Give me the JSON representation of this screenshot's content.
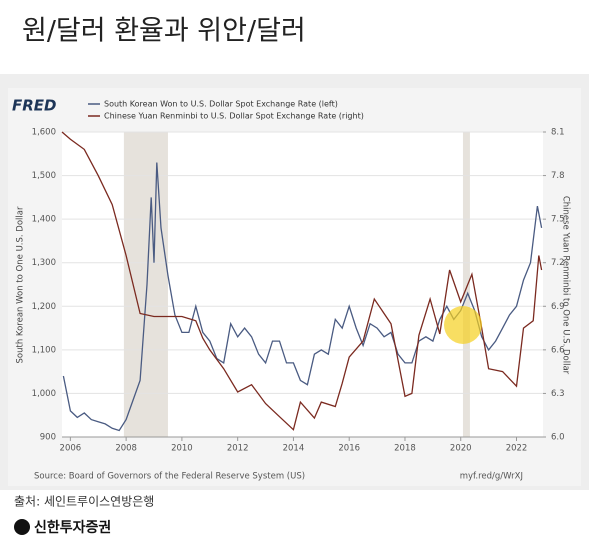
{
  "slide": {
    "title": "원/달러 환율과 위안/달러",
    "source": "출처: 세인트루이스연방은행",
    "brand": "신한투자증권"
  },
  "chart_data": {
    "type": "line",
    "logo": "FRED",
    "source": "Source: Board of Governors of the Federal Reserve System (US)",
    "url": "myf.red/g/WrXJ",
    "ylabel": "South Korean Won to One U.S. Dollar",
    "y2label": "Chinese Yuan Renminbi to One U.S. Dollar",
    "xlim": [
      2005.7,
      2022.95
    ],
    "xticks": [
      2006,
      2008,
      2010,
      2012,
      2014,
      2016,
      2018,
      2020,
      2022
    ],
    "ylim": [
      900,
      1600
    ],
    "yticks": [
      900,
      {
        "value": 1000,
        "label": "1,000"
      },
      {
        "value": 1100,
        "label": "1,100"
      },
      {
        "value": 1200,
        "label": "1,200"
      },
      {
        "value": 1300,
        "label": "1,300"
      },
      {
        "value": 1400,
        "label": "1,400"
      },
      {
        "value": 1500,
        "label": "1,500"
      },
      {
        "value": 1600,
        "label": "1,600"
      }
    ],
    "y2lim": [
      6.0,
      8.1
    ],
    "y2ticks": [
      {
        "value": 6,
        "label": "6.0"
      },
      6.3,
      6.6,
      6.9,
      7.2,
      7.5,
      7.8,
      8.1
    ],
    "grid": true,
    "shaded_ranges": [
      [
        2007.92,
        2009.5
      ],
      [
        2020.08,
        2020.33
      ]
    ],
    "series": [
      {
        "name": "South Korean Won to U.S. Dollar Spot Exchange Rate (left)",
        "color": "#4a5b82",
        "x": [
          2005.75,
          2006.0,
          2006.25,
          2006.5,
          2006.75,
          2007.0,
          2007.25,
          2007.5,
          2007.75,
          2008.0,
          2008.25,
          2008.5,
          2008.75,
          2008.9,
          2009.0,
          2009.1,
          2009.25,
          2009.5,
          2009.75,
          2010.0,
          2010.25,
          2010.5,
          2010.75,
          2011.0,
          2011.25,
          2011.5,
          2011.75,
          2012.0,
          2012.25,
          2012.5,
          2012.75,
          2013.0,
          2013.25,
          2013.5,
          2013.75,
          2014.0,
          2014.25,
          2014.5,
          2014.75,
          2015.0,
          2015.25,
          2015.5,
          2015.75,
          2016.0,
          2016.25,
          2016.5,
          2016.75,
          2017.0,
          2017.25,
          2017.5,
          2017.75,
          2018.0,
          2018.25,
          2018.5,
          2018.75,
          2019.0,
          2019.25,
          2019.5,
          2019.75,
          2020.0,
          2020.25,
          2020.5,
          2020.75,
          2021.0,
          2021.25,
          2021.5,
          2021.75,
          2022.0,
          2022.25,
          2022.5,
          2022.75,
          2022.9
        ],
        "values": [
          1040,
          960,
          945,
          955,
          940,
          935,
          930,
          920,
          915,
          940,
          985,
          1030,
          1250,
          1450,
          1300,
          1530,
          1380,
          1270,
          1180,
          1140,
          1140,
          1200,
          1140,
          1120,
          1080,
          1070,
          1160,
          1130,
          1150,
          1130,
          1090,
          1070,
          1120,
          1120,
          1070,
          1070,
          1030,
          1020,
          1090,
          1100,
          1090,
          1170,
          1150,
          1200,
          1150,
          1110,
          1160,
          1150,
          1130,
          1140,
          1090,
          1070,
          1070,
          1120,
          1130,
          1120,
          1170,
          1200,
          1170,
          1190,
          1230,
          1190,
          1130,
          1100,
          1120,
          1150,
          1180,
          1200,
          1260,
          1300,
          1430,
          1380
        ]
      },
      {
        "name": "Chinese Yuan Renminbi to U.S. Dollar Spot Exchange Rate (right)",
        "color": "#7b2a20",
        "axis": "y2",
        "x": [
          2005.7,
          2006.0,
          2006.5,
          2007.0,
          2007.5,
          2008.0,
          2008.5,
          2009.0,
          2009.5,
          2010.0,
          2010.5,
          2010.75,
          2011.0,
          2011.5,
          2012.0,
          2012.5,
          2013.0,
          2013.5,
          2014.0,
          2014.25,
          2014.75,
          2015.0,
          2015.5,
          2015.75,
          2016.0,
          2016.5,
          2016.9,
          2017.5,
          2018.0,
          2018.25,
          2018.5,
          2018.9,
          2019.25,
          2019.6,
          2020.0,
          2020.4,
          2020.75,
          2021.0,
          2021.5,
          2022.0,
          2022.25,
          2022.6,
          2022.8,
          2022.9
        ],
        "values": [
          8.1,
          8.05,
          7.98,
          7.8,
          7.6,
          7.25,
          6.85,
          6.83,
          6.83,
          6.83,
          6.8,
          6.68,
          6.6,
          6.47,
          6.31,
          6.36,
          6.23,
          6.14,
          6.05,
          6.24,
          6.13,
          6.24,
          6.21,
          6.37,
          6.55,
          6.66,
          6.95,
          6.78,
          6.28,
          6.3,
          6.7,
          6.95,
          6.71,
          7.15,
          6.93,
          7.12,
          6.75,
          6.47,
          6.45,
          6.35,
          6.75,
          6.8,
          7.25,
          7.15
        ]
      }
    ]
  }
}
